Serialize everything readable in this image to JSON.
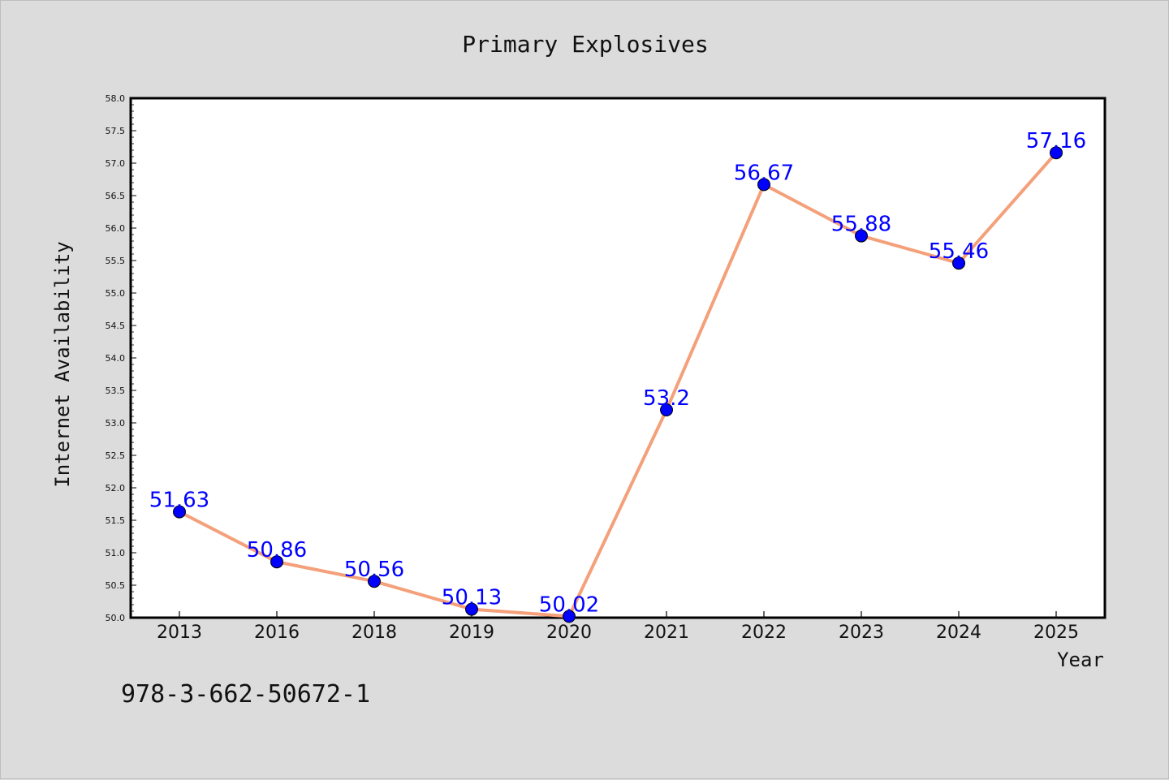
{
  "chart_data": {
    "type": "line",
    "title": "Primary Explosives",
    "xlabel": "Year",
    "ylabel": "Internet Availability",
    "categories": [
      "2013",
      "2016",
      "2018",
      "2019",
      "2020",
      "2021",
      "2022",
      "2023",
      "2024",
      "2025"
    ],
    "series": [
      {
        "values": [
          51.63,
          50.86,
          50.56,
          50.13,
          50.02,
          53.2,
          56.67,
          55.88,
          55.46,
          57.16
        ],
        "labels": [
          "51.63",
          "50.86",
          "50.56",
          "50.13",
          "50.02",
          "53.2",
          "56.67",
          "55.88",
          "55.46",
          "57.16"
        ],
        "line_color": "#f4a07a",
        "marker_color": "#0000ff"
      }
    ],
    "ylim": [
      50.0,
      58.0
    ],
    "yticks": [
      "50.0",
      "50.5",
      "51.0",
      "51.5",
      "52.0",
      "52.5",
      "53.0",
      "53.5",
      "54.0",
      "54.5",
      "55.0",
      "55.5",
      "56.0",
      "56.5",
      "57.0",
      "57.5",
      "58.0"
    ],
    "grid": false,
    "legend": false
  },
  "footer_text": "978-3-662-50672-1",
  "colors": {
    "background": "#dcdcdc",
    "plot_area": "#ffffff",
    "line": "#f4a07a",
    "marker": "#0000ff",
    "data_label": "#0000ff"
  }
}
